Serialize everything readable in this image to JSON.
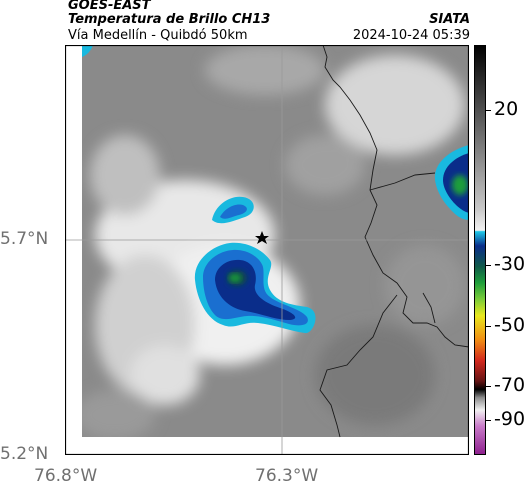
{
  "header": {
    "satellite": "GOES-EAST",
    "product": "Temperatura de Brillo CH13",
    "region": "Vía Medellín - Quibdó 50km",
    "organization": "SIATA",
    "timestamp": "2024-10-24 05:39"
  },
  "axes": {
    "lat_labels": [
      "5.7°N",
      "5.2°N"
    ],
    "lon_labels": [
      "76.8°W",
      "76.3°W"
    ]
  },
  "colorbar": {
    "tick_labels": [
      "20",
      "-30",
      "-50",
      "-70",
      "-90"
    ]
  },
  "colors": {
    "cloud_cold": "#0a2d8a",
    "cloud_mid": "#1a6fd0",
    "cloud_cyan": "#19b9df",
    "green_core": "#1e9e3a"
  }
}
